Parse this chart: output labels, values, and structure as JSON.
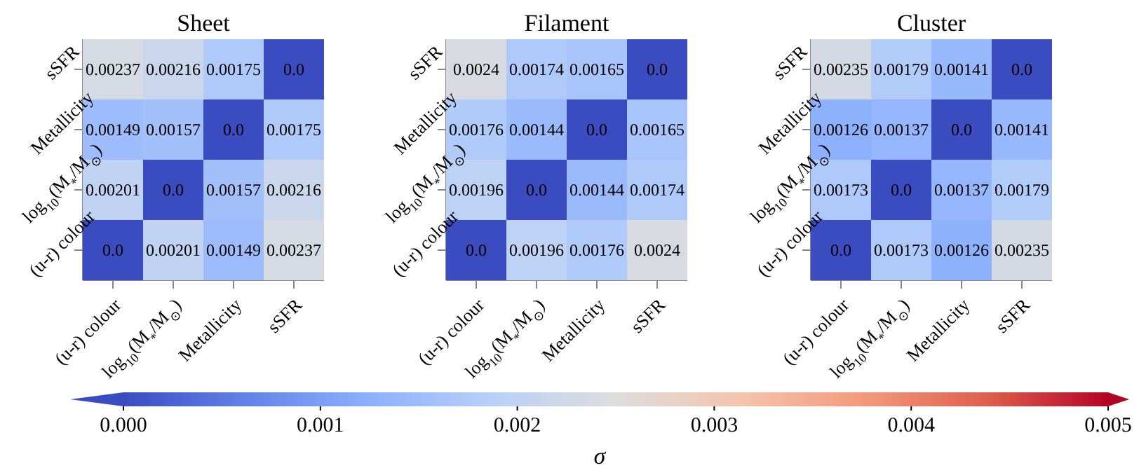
{
  "chart_data": [
    {
      "type": "heatmap",
      "title": "Sheet",
      "categories": [
        "(u-r) colour",
        "log$_{10}$(M$_{*}$/M$_{⊙}$)",
        "Metallicity",
        "sSFR"
      ],
      "y_categories": [
        "sSFR",
        "Metallicity",
        "log$_{10}$(M$_{*}$/M$_{⊙}$)",
        "(u-r) colour"
      ],
      "cells": [
        [
          0.00237,
          0.00216,
          0.00175,
          0.0
        ],
        [
          0.00149,
          0.00157,
          0.0,
          0.00175
        ],
        [
          0.00201,
          0.0,
          0.00157,
          0.00216
        ],
        [
          0.0,
          0.00201,
          0.00149,
          0.00237
        ]
      ],
      "cell_labels": [
        [
          "0.00237",
          "0.00216",
          "0.00175",
          "0.0"
        ],
        [
          "0.00149",
          "0.00157",
          "0.0",
          "0.00175"
        ],
        [
          "0.00201",
          "0.0",
          "0.00157",
          "0.00216"
        ],
        [
          "0.0",
          "0.00201",
          "0.00149",
          "0.00237"
        ]
      ],
      "clim": [
        0,
        0.005
      ],
      "cticks": [
        {
          "value": 0,
          "label": "0.000"
        },
        {
          "value": 0.001,
          "label": "0.001"
        },
        {
          "value": 0.002,
          "label": "0.002"
        },
        {
          "value": 0.003,
          "label": "0.003"
        },
        {
          "value": 0.004,
          "label": "0.004"
        },
        {
          "value": 0.005,
          "label": "0.005"
        }
      ],
      "clabel": "σ"
    },
    {
      "type": "heatmap",
      "title": "Filament",
      "categories": [
        "(u-r) colour",
        "log$_{10}$(M$_{*}$/M$_{⊙}$)",
        "Metallicity",
        "sSFR"
      ],
      "y_categories": [
        "sSFR",
        "Metallicity",
        "log$_{10}$(M$_{*}$/M$_{⊙}$)",
        "(u-r) colour"
      ],
      "cells": [
        [
          0.0024,
          0.00174,
          0.00165,
          0.0
        ],
        [
          0.00176,
          0.00144,
          0.0,
          0.00165
        ],
        [
          0.00196,
          0.0,
          0.00144,
          0.00174
        ],
        [
          0.0,
          0.00196,
          0.00176,
          0.0024
        ]
      ],
      "cell_labels": [
        [
          "0.0024",
          "0.00174",
          "0.00165",
          "0.0"
        ],
        [
          "0.00176",
          "0.00144",
          "0.0",
          "0.00165"
        ],
        [
          "0.00196",
          "0.0",
          "0.00144",
          "0.00174"
        ],
        [
          "0.0",
          "0.00196",
          "0.00176",
          "0.0024"
        ]
      ]
    },
    {
      "type": "heatmap",
      "title": "Cluster",
      "categories": [
        "(u-r) colour",
        "log$_{10}$(M$_{*}$/M$_{⊙}$)",
        "Metallicity",
        "sSFR"
      ],
      "y_categories": [
        "sSFR",
        "Metallicity",
        "log$_{10}$(M$_{*}$/M$_{⊙}$)",
        "(u-r) colour"
      ],
      "cells": [
        [
          0.00235,
          0.00179,
          0.00141,
          0.0
        ],
        [
          0.00126,
          0.00137,
          0.0,
          0.00141
        ],
        [
          0.00173,
          0.0,
          0.00137,
          0.00179
        ],
        [
          0.0,
          0.00173,
          0.00126,
          0.00235
        ]
      ],
      "cell_labels": [
        [
          "0.00235",
          "0.00179",
          "0.00141",
          "0.0"
        ],
        [
          "0.00126",
          "0.00137",
          "0.0",
          "0.00141"
        ],
        [
          "0.00173",
          "0.0",
          "0.00137",
          "0.00179"
        ],
        [
          "0.0",
          "0.00173",
          "0.00126",
          "0.00235"
        ]
      ]
    }
  ]
}
